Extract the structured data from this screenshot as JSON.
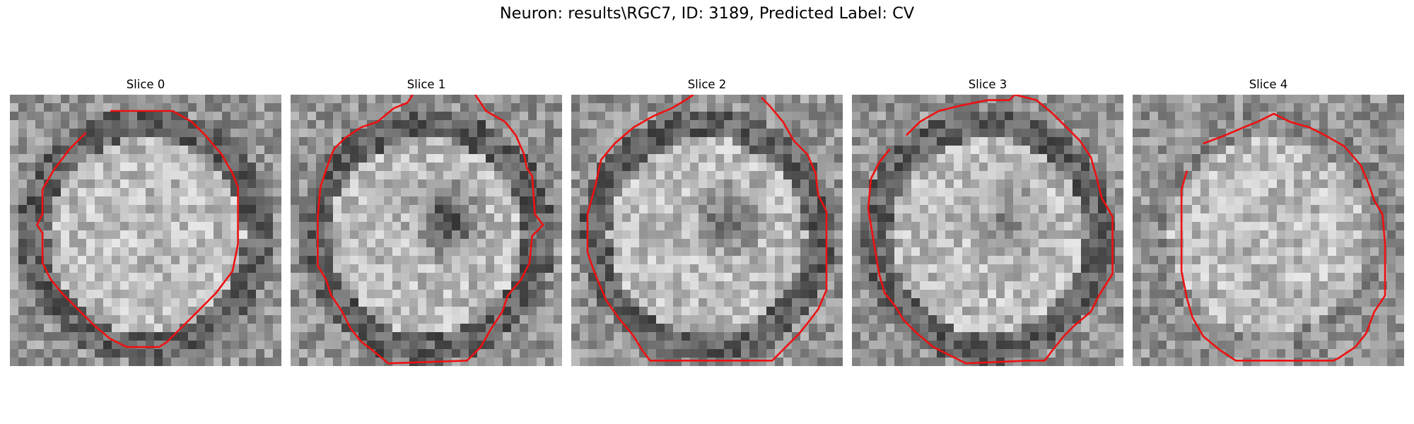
{
  "figure": {
    "title": "Neuron: results\\RGC7, ID: 3189, Predicted Label: CV"
  },
  "contour_color": "#ee1111",
  "slices": [
    {
      "title": "Slice 0",
      "core": "none",
      "dark_ring": true,
      "seed": 11,
      "contour": [
        [
          0.37,
          0.06
        ],
        [
          0.6,
          0.06
        ],
        [
          0.67,
          0.1
        ],
        [
          0.72,
          0.15
        ],
        [
          0.78,
          0.22
        ],
        [
          0.82,
          0.29
        ],
        [
          0.84,
          0.34
        ],
        [
          0.84,
          0.55
        ],
        [
          0.82,
          0.65
        ],
        [
          0.76,
          0.73
        ],
        [
          0.7,
          0.79
        ],
        [
          0.64,
          0.85
        ],
        [
          0.58,
          0.91
        ],
        [
          0.55,
          0.93
        ],
        [
          0.43,
          0.93
        ],
        [
          0.37,
          0.9
        ],
        [
          0.31,
          0.85
        ],
        [
          0.25,
          0.79
        ],
        [
          0.19,
          0.73
        ],
        [
          0.15,
          0.68
        ],
        [
          0.12,
          0.62
        ],
        [
          0.12,
          0.51
        ],
        [
          0.1,
          0.48
        ],
        [
          0.12,
          0.44
        ],
        [
          0.12,
          0.35
        ],
        [
          0.16,
          0.28
        ],
        [
          0.22,
          0.2
        ],
        [
          0.28,
          0.14
        ]
      ]
    },
    {
      "title": "Slice 1",
      "core": "strong",
      "dark_ring": true,
      "seed": 23,
      "contour": [
        [
          0.45,
          0.0
        ],
        [
          0.43,
          0.03
        ],
        [
          0.38,
          0.05
        ],
        [
          0.32,
          0.1
        ],
        [
          0.26,
          0.12
        ],
        [
          0.2,
          0.16
        ],
        [
          0.16,
          0.2
        ],
        [
          0.14,
          0.25
        ],
        [
          0.11,
          0.34
        ],
        [
          0.1,
          0.45
        ],
        [
          0.1,
          0.63
        ],
        [
          0.13,
          0.68
        ],
        [
          0.15,
          0.74
        ],
        [
          0.19,
          0.8
        ],
        [
          0.22,
          0.86
        ],
        [
          0.26,
          0.91
        ],
        [
          0.3,
          0.94
        ],
        [
          0.36,
          0.99
        ],
        [
          0.65,
          0.98
        ],
        [
          0.7,
          0.93
        ],
        [
          0.74,
          0.86
        ],
        [
          0.78,
          0.8
        ],
        [
          0.8,
          0.74
        ],
        [
          0.85,
          0.68
        ],
        [
          0.88,
          0.62
        ],
        [
          0.89,
          0.52
        ],
        [
          0.93,
          0.48
        ],
        [
          0.9,
          0.44
        ],
        [
          0.89,
          0.3
        ],
        [
          0.87,
          0.27
        ],
        [
          0.86,
          0.22
        ],
        [
          0.83,
          0.15
        ],
        [
          0.79,
          0.1
        ],
        [
          0.72,
          0.06
        ],
        [
          0.68,
          0.0
        ]
      ]
    },
    {
      "title": "Slice 2",
      "core": "medium",
      "dark_ring": true,
      "seed": 37,
      "contour": [
        [
          0.45,
          0.0
        ],
        [
          0.42,
          0.02
        ],
        [
          0.37,
          0.05
        ],
        [
          0.3,
          0.08
        ],
        [
          0.23,
          0.12
        ],
        [
          0.16,
          0.18
        ],
        [
          0.11,
          0.24
        ],
        [
          0.09,
          0.33
        ],
        [
          0.06,
          0.44
        ],
        [
          0.06,
          0.58
        ],
        [
          0.08,
          0.64
        ],
        [
          0.1,
          0.69
        ],
        [
          0.13,
          0.76
        ],
        [
          0.18,
          0.83
        ],
        [
          0.23,
          0.89
        ],
        [
          0.26,
          0.94
        ],
        [
          0.29,
          0.98
        ],
        [
          0.74,
          0.98
        ],
        [
          0.79,
          0.93
        ],
        [
          0.84,
          0.88
        ],
        [
          0.88,
          0.83
        ],
        [
          0.91,
          0.79
        ],
        [
          0.94,
          0.72
        ],
        [
          0.94,
          0.43
        ],
        [
          0.91,
          0.37
        ],
        [
          0.9,
          0.29
        ],
        [
          0.87,
          0.22
        ],
        [
          0.82,
          0.17
        ],
        [
          0.78,
          0.1
        ],
        [
          0.73,
          0.04
        ],
        [
          0.7,
          0.01
        ]
      ]
    },
    {
      "title": "Slice 3",
      "core": "light",
      "dark_ring": true,
      "seed": 53,
      "contour": [
        [
          0.2,
          0.15
        ],
        [
          0.25,
          0.1
        ],
        [
          0.32,
          0.06
        ],
        [
          0.4,
          0.04
        ],
        [
          0.5,
          0.02
        ],
        [
          0.58,
          0.02
        ],
        [
          0.6,
          0.0
        ],
        [
          0.68,
          0.02
        ],
        [
          0.74,
          0.07
        ],
        [
          0.79,
          0.12
        ],
        [
          0.84,
          0.17
        ],
        [
          0.88,
          0.23
        ],
        [
          0.9,
          0.3
        ],
        [
          0.92,
          0.38
        ],
        [
          0.96,
          0.45
        ],
        [
          0.96,
          0.66
        ],
        [
          0.91,
          0.74
        ],
        [
          0.88,
          0.8
        ],
        [
          0.82,
          0.85
        ],
        [
          0.78,
          0.89
        ],
        [
          0.74,
          0.94
        ],
        [
          0.71,
          0.98
        ],
        [
          0.65,
          0.98
        ],
        [
          0.42,
          0.99
        ],
        [
          0.38,
          0.97
        ],
        [
          0.3,
          0.93
        ],
        [
          0.24,
          0.88
        ],
        [
          0.19,
          0.83
        ],
        [
          0.16,
          0.78
        ],
        [
          0.12,
          0.73
        ],
        [
          0.1,
          0.66
        ],
        [
          0.08,
          0.54
        ],
        [
          0.06,
          0.42
        ],
        [
          0.07,
          0.31
        ],
        [
          0.1,
          0.25
        ],
        [
          0.14,
          0.2
        ]
      ]
    },
    {
      "title": "Slice 4",
      "core": "none",
      "dark_ring": false,
      "seed": 71,
      "contour": [
        [
          0.26,
          0.18
        ],
        [
          0.34,
          0.15
        ],
        [
          0.41,
          0.12
        ],
        [
          0.46,
          0.1
        ],
        [
          0.52,
          0.07
        ],
        [
          0.58,
          0.1
        ],
        [
          0.65,
          0.12
        ],
        [
          0.71,
          0.15
        ],
        [
          0.78,
          0.19
        ],
        [
          0.84,
          0.26
        ],
        [
          0.87,
          0.33
        ],
        [
          0.89,
          0.39
        ],
        [
          0.92,
          0.44
        ],
        [
          0.93,
          0.55
        ],
        [
          0.93,
          0.74
        ],
        [
          0.89,
          0.8
        ],
        [
          0.86,
          0.88
        ],
        [
          0.82,
          0.93
        ],
        [
          0.76,
          0.97
        ],
        [
          0.74,
          0.98
        ],
        [
          0.38,
          0.98
        ],
        [
          0.32,
          0.94
        ],
        [
          0.26,
          0.89
        ],
        [
          0.22,
          0.82
        ],
        [
          0.2,
          0.75
        ],
        [
          0.18,
          0.65
        ],
        [
          0.18,
          0.35
        ],
        [
          0.2,
          0.28
        ]
      ]
    }
  ]
}
